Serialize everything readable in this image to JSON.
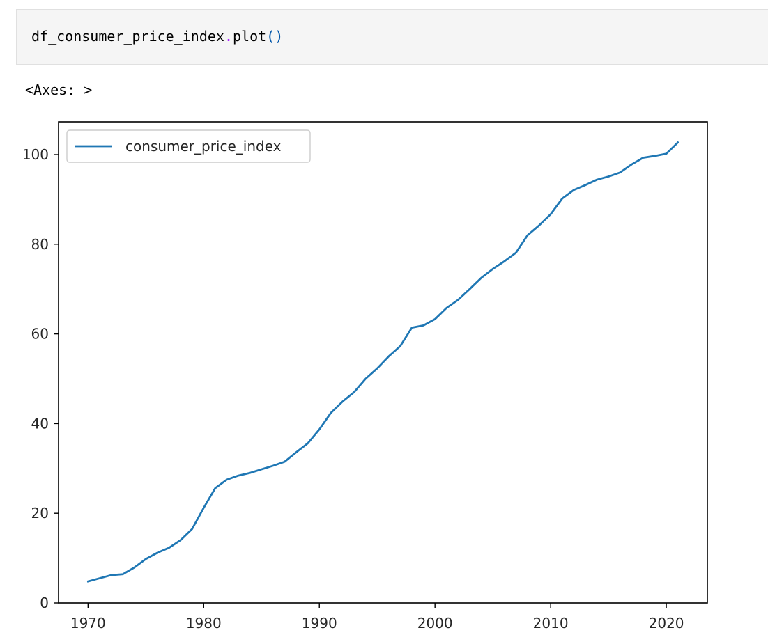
{
  "cell": {
    "code": {
      "object": "df_consumer_price_index",
      "dot": ".",
      "method": "plot",
      "parens": "()"
    },
    "output_repr": "<Axes: >"
  },
  "colors": {
    "series": "#1f77b4",
    "axes": "#000000",
    "text": "#262626",
    "cell_bg": "#f5f5f5"
  },
  "chart_data": {
    "type": "line",
    "title": "",
    "xlabel": "",
    "ylabel": "",
    "xlim": [
      1967.45,
      2023.55
    ],
    "ylim": [
      0,
      107.3
    ],
    "xticks": [
      1970,
      1980,
      1990,
      2000,
      2010,
      2020
    ],
    "yticks": [
      0,
      20,
      40,
      60,
      80,
      100
    ],
    "grid": false,
    "legend_position": "top-left",
    "series": [
      {
        "name": "consumer_price_index",
        "x": [
          1970,
          1971,
          1972,
          1973,
          1974,
          1975,
          1976,
          1977,
          1978,
          1979,
          1980,
          1981,
          1982,
          1983,
          1984,
          1985,
          1986,
          1987,
          1988,
          1989,
          1990,
          1991,
          1992,
          1993,
          1994,
          1995,
          1996,
          1997,
          1998,
          1999,
          2000,
          2001,
          2002,
          2003,
          2004,
          2005,
          2006,
          2007,
          2008,
          2009,
          2010,
          2011,
          2012,
          2013,
          2014,
          2015,
          2016,
          2017,
          2018,
          2019,
          2020,
          2021
        ],
        "values": [
          4.8,
          5.5,
          6.2,
          6.4,
          7.9,
          9.8,
          11.2,
          12.3,
          14.0,
          16.5,
          21.2,
          25.6,
          27.5,
          28.4,
          29.0,
          29.8,
          30.6,
          31.5,
          33.6,
          35.6,
          38.7,
          42.4,
          44.9,
          47.0,
          50.0,
          52.3,
          55.0,
          57.3,
          61.4,
          61.9,
          63.3,
          65.8,
          67.6,
          70.0,
          72.5,
          74.5,
          76.2,
          78.1,
          82.0,
          84.2,
          86.7,
          90.2,
          92.1,
          93.2,
          94.4,
          95.1,
          96.0,
          97.8,
          99.3,
          99.7,
          100.2,
          102.7
        ]
      }
    ]
  }
}
